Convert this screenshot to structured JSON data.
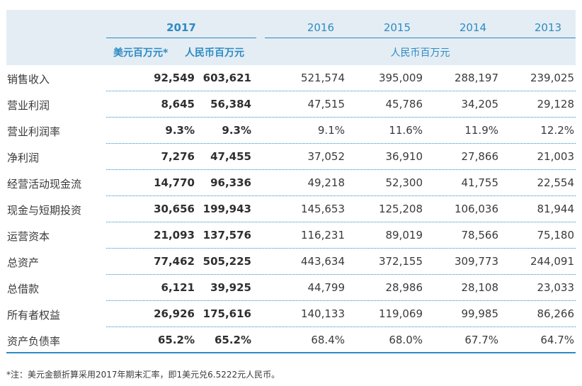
{
  "header": {
    "year_2017": "2017",
    "years_other": [
      "2016",
      "2015",
      "2014",
      "2013"
    ],
    "unit_usd": "美元百万元*",
    "unit_rmb": "人民币百万元",
    "unit_rmb_span": "人民币百万元"
  },
  "rows": [
    {
      "label": "销售收入",
      "values": [
        "92,549",
        "603,621",
        "521,574",
        "395,009",
        "288,197",
        "239,025"
      ]
    },
    {
      "label": "营业利润",
      "values": [
        "8,645",
        "56,384",
        "47,515",
        "45,786",
        "34,205",
        "29,128"
      ]
    },
    {
      "label": "营业利润率",
      "values": [
        "9.3%",
        "9.3%",
        "9.1%",
        "11.6%",
        "11.9%",
        "12.2%"
      ]
    },
    {
      "label": "净利润",
      "values": [
        "7,276",
        "47,455",
        "37,052",
        "36,910",
        "27,866",
        "21,003"
      ]
    },
    {
      "label": "经营活动现金流",
      "values": [
        "14,770",
        "96,336",
        "49,218",
        "52,300",
        "41,755",
        "22,554"
      ]
    },
    {
      "label": "现金与短期投资",
      "values": [
        "30,656",
        "199,943",
        "145,653",
        "125,208",
        "106,036",
        "81,944"
      ]
    },
    {
      "label": "运营资本",
      "values": [
        "21,093",
        "137,576",
        "116,231",
        "89,019",
        "78,566",
        "75,180"
      ]
    },
    {
      "label": "总资产",
      "values": [
        "77,462",
        "505,225",
        "443,634",
        "372,155",
        "309,773",
        "244,091"
      ]
    },
    {
      "label": "总借款",
      "values": [
        "6,121",
        "39,925",
        "44,799",
        "28,986",
        "28,108",
        "23,033"
      ]
    },
    {
      "label": "所有者权益",
      "values": [
        "26,926",
        "175,616",
        "140,133",
        "119,069",
        "99,985",
        "86,266"
      ]
    },
    {
      "label": "资产负债率",
      "values": [
        "65.2%",
        "65.2%",
        "68.4%",
        "68.0%",
        "67.7%",
        "64.7%"
      ]
    }
  ],
  "footnote": "*注：美元金额折算采用2017年期末汇率，即1美元兑6.5222元人民币。",
  "colors": {
    "accent": "#2d8bc3",
    "header_band": "#e4edf4",
    "text": "#3a3a3a"
  }
}
